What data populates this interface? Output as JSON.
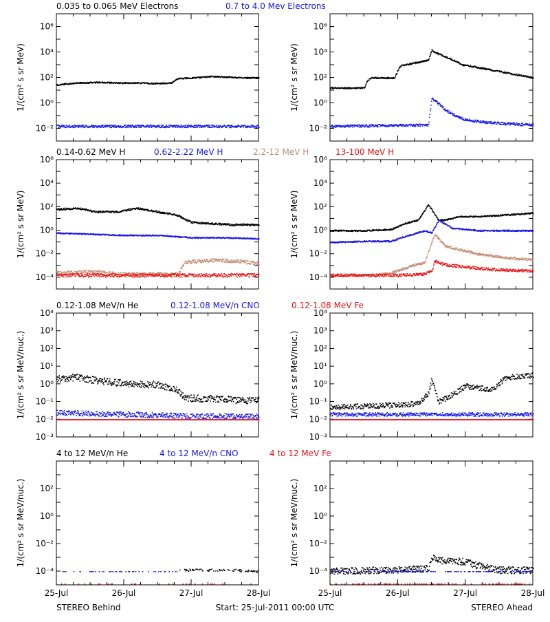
{
  "colors": {
    "black": "#000000",
    "blue": "#1515f0",
    "tan": "#c58a6e",
    "red": "#ee1111"
  },
  "footer": {
    "left": "STEREO Behind",
    "center": "Start: 25-Jul-2011 00:00 UTC",
    "right": "STEREO Ahead"
  },
  "chart_data": [
    {
      "type": "scatter",
      "scale": "log",
      "legend": [
        {
          "text": "0.035 to 0.065 MeV Electrons",
          "color": "black"
        },
        {
          "text": "0.7 to 4.0 Mev Electrons",
          "color": "blue"
        }
      ],
      "ylabel": "1/(cm² s sr MeV)",
      "yticks": [
        {
          "exp": -2,
          "label": "10⁻²"
        },
        {
          "exp": 0,
          "label": "10⁰"
        },
        {
          "exp": 2,
          "label": "10²"
        },
        {
          "exp": 4,
          "label": "10⁴"
        },
        {
          "exp": 6,
          "label": "10⁶"
        }
      ],
      "ylim_exp": [
        -3,
        7
      ],
      "xticks": [
        "25-Jul",
        "26-Jul",
        "27-Jul",
        "28-Jul"
      ],
      "xlim_days": [
        0,
        3
      ],
      "panels": [
        {
          "name": "STEREO Behind",
          "series": [
            {
              "color": "black",
              "jitter": 0.05,
              "x": [
                0,
                0.3,
                0.6,
                0.9,
                1.2,
                1.5,
                1.7,
                1.8,
                2.0,
                2.3,
                2.6,
                2.8,
                3.0
              ],
              "log_y": [
                1.45,
                1.6,
                1.65,
                1.6,
                1.6,
                1.55,
                1.6,
                1.95,
                2.0,
                2.1,
                2.05,
                2.0,
                2.0
              ]
            },
            {
              "color": "blue",
              "jitter": 0.1,
              "x": [
                0,
                1.5,
                3.0
              ],
              "log_y": [
                -1.8,
                -1.8,
                -1.8
              ]
            }
          ]
        },
        {
          "name": "STEREO Ahead",
          "series": [
            {
              "color": "black",
              "jitter": 0.06,
              "x": [
                0,
                0.5,
                0.55,
                0.6,
                0.95,
                1.0,
                1.05,
                1.1,
                1.45,
                1.5,
                1.55,
                1.9,
                1.95,
                2.0,
                2.2,
                2.5,
                2.8,
                3.0
              ],
              "log_y": [
                1.2,
                1.2,
                1.8,
                2.0,
                2.0,
                2.6,
                3.0,
                3.0,
                3.4,
                4.2,
                4.0,
                3.2,
                3.0,
                3.0,
                2.8,
                2.5,
                2.2,
                2.0
              ]
            },
            {
              "color": "blue",
              "jitter": 0.1,
              "x": [
                0,
                1.45,
                1.5,
                1.55,
                1.7,
                1.85,
                2.0,
                2.3,
                2.6,
                3.0
              ],
              "log_y": [
                -1.8,
                -1.7,
                0.4,
                0.2,
                -0.5,
                -1.0,
                -1.3,
                -1.5,
                -1.6,
                -1.7
              ]
            }
          ]
        }
      ]
    },
    {
      "type": "scatter",
      "scale": "log",
      "legend": [
        {
          "text": "0.14-0.62 MeV H",
          "color": "black"
        },
        {
          "text": "0.62-2.22 MeV H",
          "color": "blue"
        },
        {
          "text": "2.2-12 MeV H",
          "color": "tan"
        },
        {
          "text": "13-100 MeV H",
          "color": "red"
        }
      ],
      "ylabel": "1/(cm² s sr MeV)",
      "yticks": [
        {
          "exp": -4,
          "label": "10⁻⁴"
        },
        {
          "exp": -2,
          "label": "10⁻²"
        },
        {
          "exp": 0,
          "label": "10⁰"
        },
        {
          "exp": 2,
          "label": "10²"
        },
        {
          "exp": 4,
          "label": "10⁴"
        },
        {
          "exp": 6,
          "label": "10⁶"
        }
      ],
      "ylim_exp": [
        -5,
        6
      ],
      "xticks": [
        "25-Jul",
        "26-Jul",
        "27-Jul",
        "28-Jul"
      ],
      "xlim_days": [
        0,
        3
      ],
      "panels": [
        {
          "name": "STEREO Behind",
          "series": [
            {
              "color": "black",
              "jitter": 0.08,
              "x": [
                0,
                0.3,
                0.6,
                0.9,
                1.2,
                1.5,
                1.8,
                2.0,
                2.3,
                2.6,
                3.0
              ],
              "log_y": [
                1.8,
                1.9,
                1.6,
                1.6,
                1.9,
                1.6,
                1.3,
                0.7,
                0.6,
                0.5,
                0.5
              ]
            },
            {
              "color": "blue",
              "jitter": 0.05,
              "x": [
                0,
                0.5,
                1.0,
                1.5,
                2.0,
                2.5,
                3.0
              ],
              "log_y": [
                -0.2,
                -0.3,
                -0.4,
                -0.4,
                -0.6,
                -0.6,
                -0.7
              ]
            },
            {
              "color": "tan",
              "jitter": 0.15,
              "x": [
                0,
                0.5,
                1.0,
                1.5,
                1.8,
                1.9,
                2.3,
                2.7,
                3.0
              ],
              "log_y": [
                -3.6,
                -3.5,
                -3.7,
                -3.7,
                -3.7,
                -2.7,
                -2.5,
                -2.6,
                -2.8
              ]
            },
            {
              "color": "red",
              "jitter": 0.15,
              "x": [
                0,
                1.5,
                3.0
              ],
              "log_y": [
                -3.8,
                -3.8,
                -3.8
              ]
            }
          ]
        },
        {
          "name": "STEREO Ahead",
          "series": [
            {
              "color": "black",
              "jitter": 0.06,
              "x": [
                0,
                0.5,
                0.9,
                1.1,
                1.3,
                1.45,
                1.5,
                1.55,
                1.6,
                1.7,
                1.9,
                2.2,
                2.5,
                2.8,
                3.0
              ],
              "log_y": [
                0.0,
                0.0,
                0.1,
                0.6,
                0.9,
                2.2,
                1.8,
                1.3,
                0.9,
                0.9,
                1.2,
                1.2,
                1.3,
                1.4,
                1.5
              ]
            },
            {
              "color": "blue",
              "jitter": 0.06,
              "x": [
                0,
                0.5,
                0.9,
                1.1,
                1.4,
                1.5,
                1.6,
                1.8,
                2.2,
                2.6,
                3.0
              ],
              "log_y": [
                -1.0,
                -0.9,
                -0.9,
                -0.5,
                0.0,
                -0.2,
                0.9,
                0.2,
                0.0,
                0.0,
                0.0
              ]
            },
            {
              "color": "tan",
              "jitter": 0.1,
              "x": [
                0,
                0.6,
                0.9,
                1.2,
                1.4,
                1.5,
                1.55,
                1.6,
                1.7,
                1.9,
                2.2,
                2.6,
                3.0
              ],
              "log_y": [
                -3.8,
                -3.8,
                -3.6,
                -3.0,
                -2.7,
                -1.0,
                -0.3,
                -0.7,
                -1.3,
                -1.6,
                -2.0,
                -2.3,
                -2.5
              ]
            },
            {
              "color": "red",
              "jitter": 0.12,
              "x": [
                0,
                1.0,
                1.4,
                1.5,
                1.55,
                1.7,
                2.0,
                2.4,
                2.8,
                3.0
              ],
              "log_y": [
                -3.8,
                -3.8,
                -3.7,
                -3.4,
                -2.6,
                -2.9,
                -3.1,
                -3.3,
                -3.4,
                -3.4
              ]
            }
          ]
        }
      ]
    },
    {
      "type": "scatter",
      "scale": "log",
      "legend": [
        {
          "text": "0.12-1.08 MeV/n He",
          "color": "black"
        },
        {
          "text": "0.12-1.08 MeV/n CNO",
          "color": "blue"
        },
        {
          "text": "0.12-1.08 MeV Fe",
          "color": "red"
        }
      ],
      "ylabel": "1/(cm² s sr MeV/nuc.)",
      "yticks": [
        {
          "exp": -3,
          "label": "10⁻³"
        },
        {
          "exp": -2,
          "label": "10⁻²"
        },
        {
          "exp": -1,
          "label": "10⁻¹"
        },
        {
          "exp": 0,
          "label": "10⁰"
        },
        {
          "exp": 1,
          "label": "10¹"
        },
        {
          "exp": 2,
          "label": "10²"
        },
        {
          "exp": 3,
          "label": "10³"
        },
        {
          "exp": 4,
          "label": "10⁴"
        }
      ],
      "ylim_exp": [
        -3,
        4
      ],
      "xticks": [
        "25-Jul",
        "26-Jul",
        "27-Jul",
        "28-Jul"
      ],
      "xlim_days": [
        0,
        3
      ],
      "panels": [
        {
          "name": "STEREO Behind",
          "series": [
            {
              "color": "black",
              "jitter": 0.2,
              "x": [
                0,
                0.3,
                0.6,
                0.9,
                1.2,
                1.5,
                1.8,
                1.9,
                2.3,
                2.7,
                3.0
              ],
              "log_y": [
                0.3,
                0.4,
                0.2,
                0.1,
                0.0,
                0.0,
                -0.3,
                -0.8,
                -0.8,
                -0.9,
                -0.9
              ]
            },
            {
              "color": "blue",
              "jitter": 0.15,
              "x": [
                0,
                1.0,
                2.0,
                3.0
              ],
              "log_y": [
                -1.6,
                -1.7,
                -1.8,
                -1.8
              ]
            },
            {
              "color": "red",
              "jitter": 0.0,
              "x": [
                0,
                3.0
              ],
              "log_y": [
                -2.0,
                -2.0
              ]
            }
          ]
        },
        {
          "name": "STEREO Ahead",
          "series": [
            {
              "color": "black",
              "jitter": 0.15,
              "x": [
                0,
                0.8,
                1.3,
                1.45,
                1.5,
                1.6,
                1.8,
                2.0,
                2.2,
                2.4,
                2.6,
                3.0
              ],
              "log_y": [
                -1.3,
                -1.2,
                -1.1,
                -0.5,
                0.3,
                -1.0,
                -0.6,
                -0.1,
                -0.2,
                -0.3,
                0.4,
                0.5
              ]
            },
            {
              "color": "blue",
              "jitter": 0.1,
              "x": [
                0,
                3.0
              ],
              "log_y": [
                -1.7,
                -1.7
              ]
            },
            {
              "color": "red",
              "jitter": 0.0,
              "x": [
                0,
                3.0
              ],
              "log_y": [
                -2.0,
                -2.0
              ]
            }
          ]
        }
      ]
    },
    {
      "type": "scatter",
      "scale": "log",
      "legend": [
        {
          "text": "4 to 12 MeV/n He",
          "color": "black"
        },
        {
          "text": "4 to 12 MeV/n CNO",
          "color": "blue"
        },
        {
          "text": "4 to 12 MeV Fe",
          "color": "red"
        }
      ],
      "ylabel": "1/(cm² s sr MeV/nuc.)",
      "yticks": [
        {
          "exp": -4,
          "label": "10⁻⁴"
        },
        {
          "exp": -2,
          "label": "10⁻²"
        },
        {
          "exp": 0,
          "label": "10⁰"
        },
        {
          "exp": 2,
          "label": "10²"
        }
      ],
      "ylim_exp": [
        -5,
        4
      ],
      "xticks": [
        "25-Jul",
        "26-Jul",
        "27-Jul",
        "28-Jul"
      ],
      "xlim_days": [
        0,
        3
      ],
      "panels": [
        {
          "name": "STEREO Behind",
          "series": [
            {
              "color": "black",
              "jitter": 0.08,
              "density": 0.4,
              "x": [
                1.8,
                2.6,
                3.0
              ],
              "log_y": [
                -3.9,
                -3.9,
                -4.0
              ]
            },
            {
              "color": "blue",
              "jitter": 0.0,
              "density": 0.15,
              "x": [
                0,
                1.8
              ],
              "log_y": [
                -4.0,
                -4.0
              ]
            },
            {
              "color": "red",
              "jitter": 0.0,
              "density": 0.05,
              "x": [
                0,
                3.0
              ],
              "log_y": [
                -4.9,
                -4.9
              ]
            }
          ]
        },
        {
          "name": "STEREO Ahead",
          "series": [
            {
              "color": "black",
              "jitter": 0.25,
              "x": [
                0,
                1.45,
                1.5,
                1.6,
                1.8,
                2.0,
                2.2,
                2.5,
                3.0
              ],
              "log_y": [
                -4.0,
                -3.8,
                -3.0,
                -3.2,
                -3.2,
                -3.3,
                -3.6,
                -3.9,
                -3.9
              ]
            },
            {
              "color": "blue",
              "jitter": 0.0,
              "density": 0.3,
              "x": [
                0,
                3.0
              ],
              "log_y": [
                -4.0,
                -4.0
              ]
            },
            {
              "color": "red",
              "jitter": 0.0,
              "density": 0.2,
              "x": [
                0,
                3.0
              ],
              "log_y": [
                -4.9,
                -4.9
              ]
            }
          ]
        }
      ]
    }
  ]
}
